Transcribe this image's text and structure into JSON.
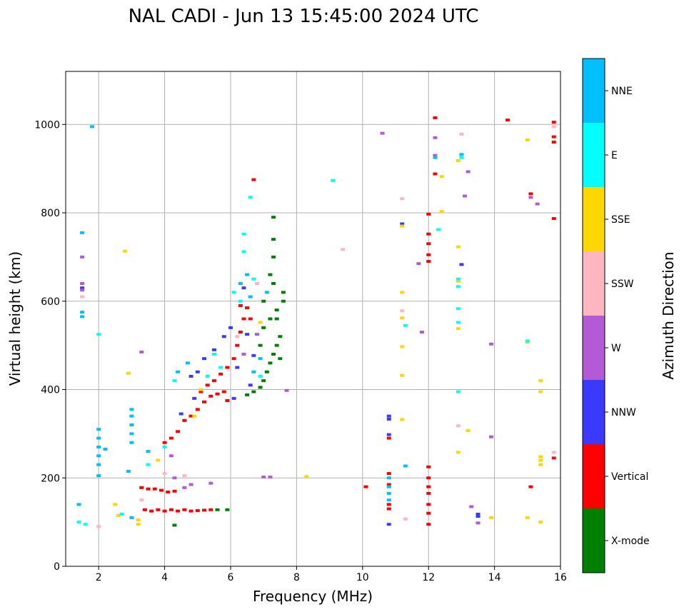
{
  "chart_data": {
    "type": "scatter",
    "title": "NAL CADI - Jun 13 15:45:00 2024 UTC",
    "xlabel": "Frequency (MHz)",
    "ylabel": "Virtual height (km)",
    "xlim": [
      1,
      16
    ],
    "ylim": [
      0,
      1120
    ],
    "xticks": [
      2,
      4,
      6,
      8,
      10,
      12,
      14,
      16
    ],
    "yticks": [
      0,
      200,
      400,
      600,
      800,
      1000
    ],
    "grid": true,
    "colorbar": {
      "label": "Azimuth Direction",
      "categories": [
        {
          "name": "X-mode",
          "color": "#008000"
        },
        {
          "name": "Vertical",
          "color": "#ff0000"
        },
        {
          "name": "NNW",
          "color": "#3a3aff"
        },
        {
          "name": "W",
          "color": "#b45ad6"
        },
        {
          "name": "SSW",
          "color": "#ffb6c1"
        },
        {
          "name": "SSE",
          "color": "#ffd700"
        },
        {
          "name": "E",
          "color": "#00ffff"
        },
        {
          "name": "NNE",
          "color": "#00bfff"
        }
      ]
    },
    "series": [
      {
        "name": "Vertical",
        "points": [
          [
            3.4,
            128
          ],
          [
            3.6,
            125
          ],
          [
            3.8,
            128
          ],
          [
            4.0,
            125
          ],
          [
            4.2,
            128
          ],
          [
            4.4,
            125
          ],
          [
            4.6,
            128
          ],
          [
            4.8,
            125
          ],
          [
            5.0,
            126
          ],
          [
            5.2,
            127
          ],
          [
            5.4,
            128
          ],
          [
            3.3,
            178
          ],
          [
            3.5,
            175
          ],
          [
            3.7,
            175
          ],
          [
            3.9,
            172
          ],
          [
            4.1,
            168
          ],
          [
            4.3,
            170
          ],
          [
            4.0,
            280
          ],
          [
            4.2,
            290
          ],
          [
            4.4,
            305
          ],
          [
            4.6,
            330
          ],
          [
            4.8,
            340
          ],
          [
            5.0,
            355
          ],
          [
            5.2,
            372
          ],
          [
            5.4,
            385
          ],
          [
            5.6,
            390
          ],
          [
            5.8,
            395
          ],
          [
            5.9,
            375
          ],
          [
            5.1,
            395
          ],
          [
            5.3,
            410
          ],
          [
            5.5,
            420
          ],
          [
            5.7,
            435
          ],
          [
            5.9,
            450
          ],
          [
            6.1,
            470
          ],
          [
            6.2,
            500
          ],
          [
            6.3,
            530
          ],
          [
            6.4,
            560
          ],
          [
            6.5,
            585
          ],
          [
            6.3,
            590
          ],
          [
            6.6,
            560
          ],
          [
            6.7,
            875
          ],
          [
            10.8,
            130
          ],
          [
            10.8,
            140
          ],
          [
            10.8,
            185
          ],
          [
            10.8,
            210
          ],
          [
            10.8,
            290
          ],
          [
            10.1,
            180
          ],
          [
            12.0,
            95
          ],
          [
            12.0,
            120
          ],
          [
            12.0,
            140
          ],
          [
            12.0,
            165
          ],
          [
            12.0,
            180
          ],
          [
            12.0,
            200
          ],
          [
            12.0,
            225
          ],
          [
            12.0,
            690
          ],
          [
            12.0,
            705
          ],
          [
            12.0,
            730
          ],
          [
            12.0,
            752
          ],
          [
            12.0,
            797
          ],
          [
            12.2,
            888
          ],
          [
            12.2,
            1015
          ],
          [
            14.4,
            1010
          ],
          [
            15.1,
            843
          ],
          [
            15.1,
            180
          ],
          [
            15.8,
            1005
          ],
          [
            15.8,
            972
          ],
          [
            15.8,
            960
          ],
          [
            15.8,
            787
          ],
          [
            15.8,
            245
          ]
        ]
      },
      {
        "name": "X-mode",
        "points": [
          [
            5.6,
            128
          ],
          [
            5.9,
            128
          ],
          [
            4.3,
            93
          ],
          [
            6.5,
            388
          ],
          [
            6.7,
            395
          ],
          [
            6.9,
            405
          ],
          [
            7.0,
            420
          ],
          [
            7.1,
            440
          ],
          [
            7.2,
            460
          ],
          [
            7.3,
            480
          ],
          [
            7.4,
            500
          ],
          [
            7.5,
            520
          ],
          [
            7.0,
            540
          ],
          [
            7.2,
            560
          ],
          [
            7.4,
            580
          ],
          [
            7.6,
            600
          ],
          [
            7.6,
            620
          ],
          [
            7.3,
            640
          ],
          [
            7.2,
            660
          ],
          [
            7.3,
            700
          ],
          [
            7.3,
            740
          ],
          [
            7.3,
            790
          ],
          [
            7.0,
            600
          ],
          [
            6.9,
            500
          ],
          [
            7.5,
            470
          ],
          [
            7.4,
            560
          ]
        ]
      },
      {
        "name": "NNW",
        "points": [
          [
            10.8,
            95
          ],
          [
            10.8,
            298
          ],
          [
            10.8,
            340
          ],
          [
            10.8,
            333
          ],
          [
            13.5,
            118
          ],
          [
            13.5,
            113
          ],
          [
            13.0,
            683
          ],
          [
            11.2,
            775
          ],
          [
            1.5,
            630
          ],
          [
            4.5,
            345
          ],
          [
            4.8,
            430
          ],
          [
            5.0,
            440
          ],
          [
            5.2,
            470
          ],
          [
            5.5,
            490
          ],
          [
            5.8,
            520
          ],
          [
            6.0,
            540
          ],
          [
            6.2,
            450
          ],
          [
            6.6,
            410
          ],
          [
            4.9,
            380
          ],
          [
            6.4,
            630
          ],
          [
            6.5,
            525
          ],
          [
            6.7,
            477
          ],
          [
            6.1,
            380
          ]
        ]
      },
      {
        "name": "W",
        "points": [
          [
            1.5,
            640
          ],
          [
            1.5,
            625
          ],
          [
            1.5,
            700
          ],
          [
            3.3,
            485
          ],
          [
            7.0,
            202
          ],
          [
            7.2,
            202
          ],
          [
            7.7,
            398
          ],
          [
            10.6,
            980
          ],
          [
            12.2,
            930
          ],
          [
            11.8,
            530
          ],
          [
            11.7,
            685
          ],
          [
            13.1,
            838
          ],
          [
            13.3,
            135
          ],
          [
            13.5,
            98
          ],
          [
            13.2,
            893
          ],
          [
            13.9,
            503
          ],
          [
            13.9,
            293
          ],
          [
            15.3,
            820
          ],
          [
            15.1,
            835
          ],
          [
            12.2,
            970
          ],
          [
            4.8,
            185
          ],
          [
            4.6,
            178
          ],
          [
            5.4,
            188
          ],
          [
            4.2,
            250
          ],
          [
            4.3,
            200
          ],
          [
            6.8,
            525
          ],
          [
            6.4,
            480
          ]
        ]
      },
      {
        "name": "SSW",
        "points": [
          [
            1.5,
            610
          ],
          [
            2.0,
            90
          ],
          [
            3.3,
            150
          ],
          [
            9.4,
            717
          ],
          [
            11.2,
            832
          ],
          [
            11.2,
            578
          ],
          [
            11.3,
            107
          ],
          [
            13.0,
            978
          ],
          [
            12.9,
            318
          ],
          [
            15.8,
            258
          ],
          [
            15.8,
            995
          ],
          [
            4.6,
            205
          ],
          [
            4.0,
            210
          ],
          [
            6.8,
            640
          ],
          [
            6.2,
            520
          ]
        ]
      },
      {
        "name": "SSE",
        "points": [
          [
            2.8,
            713
          ],
          [
            2.9,
            437
          ],
          [
            2.5,
            140
          ],
          [
            3.2,
            105
          ],
          [
            3.2,
            95
          ],
          [
            2.6,
            115
          ],
          [
            8.3,
            203
          ],
          [
            11.2,
            620
          ],
          [
            11.2,
            562
          ],
          [
            11.2,
            497
          ],
          [
            11.2,
            432
          ],
          [
            11.2,
            332
          ],
          [
            11.2,
            770
          ],
          [
            12.4,
            803
          ],
          [
            12.4,
            882
          ],
          [
            12.9,
            918
          ],
          [
            12.9,
            723
          ],
          [
            12.9,
            645
          ],
          [
            12.9,
            538
          ],
          [
            12.9,
            258
          ],
          [
            13.2,
            307
          ],
          [
            13.9,
            110
          ],
          [
            15.0,
            965
          ],
          [
            15.0,
            507
          ],
          [
            15.0,
            110
          ],
          [
            15.4,
            420
          ],
          [
            15.4,
            395
          ],
          [
            15.4,
            248
          ],
          [
            15.4,
            240
          ],
          [
            15.4,
            230
          ],
          [
            15.4,
            100
          ],
          [
            4.9,
            340
          ],
          [
            3.8,
            240
          ],
          [
            5.1,
            400
          ],
          [
            6.9,
            552
          ]
        ]
      },
      {
        "name": "E",
        "points": [
          [
            2.0,
            525
          ],
          [
            9.1,
            873
          ],
          [
            6.6,
            835
          ],
          [
            6.4,
            752
          ],
          [
            6.4,
            712
          ],
          [
            11.3,
            545
          ],
          [
            12.3,
            762
          ],
          [
            12.9,
            633
          ],
          [
            12.9,
            583
          ],
          [
            12.9,
            552
          ],
          [
            12.9,
            395
          ],
          [
            13.0,
            925
          ],
          [
            12.9,
            650
          ],
          [
            15.0,
            510
          ],
          [
            4.0,
            270
          ],
          [
            3.5,
            230
          ],
          [
            2.7,
            118
          ],
          [
            6.7,
            650
          ],
          [
            6.3,
            600
          ],
          [
            6.1,
            620
          ],
          [
            6.9,
            430
          ],
          [
            5.7,
            450
          ],
          [
            5.3,
            430
          ],
          [
            5.5,
            480
          ],
          [
            4.3,
            420
          ],
          [
            1.4,
            100
          ],
          [
            1.6,
            95
          ]
        ]
      },
      {
        "name": "NNE",
        "points": [
          [
            1.5,
            755
          ],
          [
            1.5,
            575
          ],
          [
            1.5,
            565
          ],
          [
            1.4,
            140
          ],
          [
            2.0,
            310
          ],
          [
            2.0,
            290
          ],
          [
            2.0,
            270
          ],
          [
            2.0,
            250
          ],
          [
            2.0,
            230
          ],
          [
            2.0,
            205
          ],
          [
            3.0,
            355
          ],
          [
            3.0,
            340
          ],
          [
            3.0,
            320
          ],
          [
            3.0,
            300
          ],
          [
            3.0,
            280
          ],
          [
            2.2,
            265
          ],
          [
            1.8,
            995
          ],
          [
            10.8,
            165
          ],
          [
            10.8,
            180
          ],
          [
            10.8,
            200
          ],
          [
            10.8,
            150
          ],
          [
            11.3,
            227
          ],
          [
            12.2,
            925
          ],
          [
            13.0,
            932
          ],
          [
            3.0,
            110
          ],
          [
            2.9,
            215
          ],
          [
            3.5,
            260
          ],
          [
            4.4,
            440
          ],
          [
            4.7,
            460
          ],
          [
            6.5,
            660
          ],
          [
            6.3,
            640
          ],
          [
            6.7,
            440
          ],
          [
            6.9,
            470
          ],
          [
            6.6,
            610
          ],
          [
            7.1,
            620
          ]
        ]
      }
    ]
  }
}
